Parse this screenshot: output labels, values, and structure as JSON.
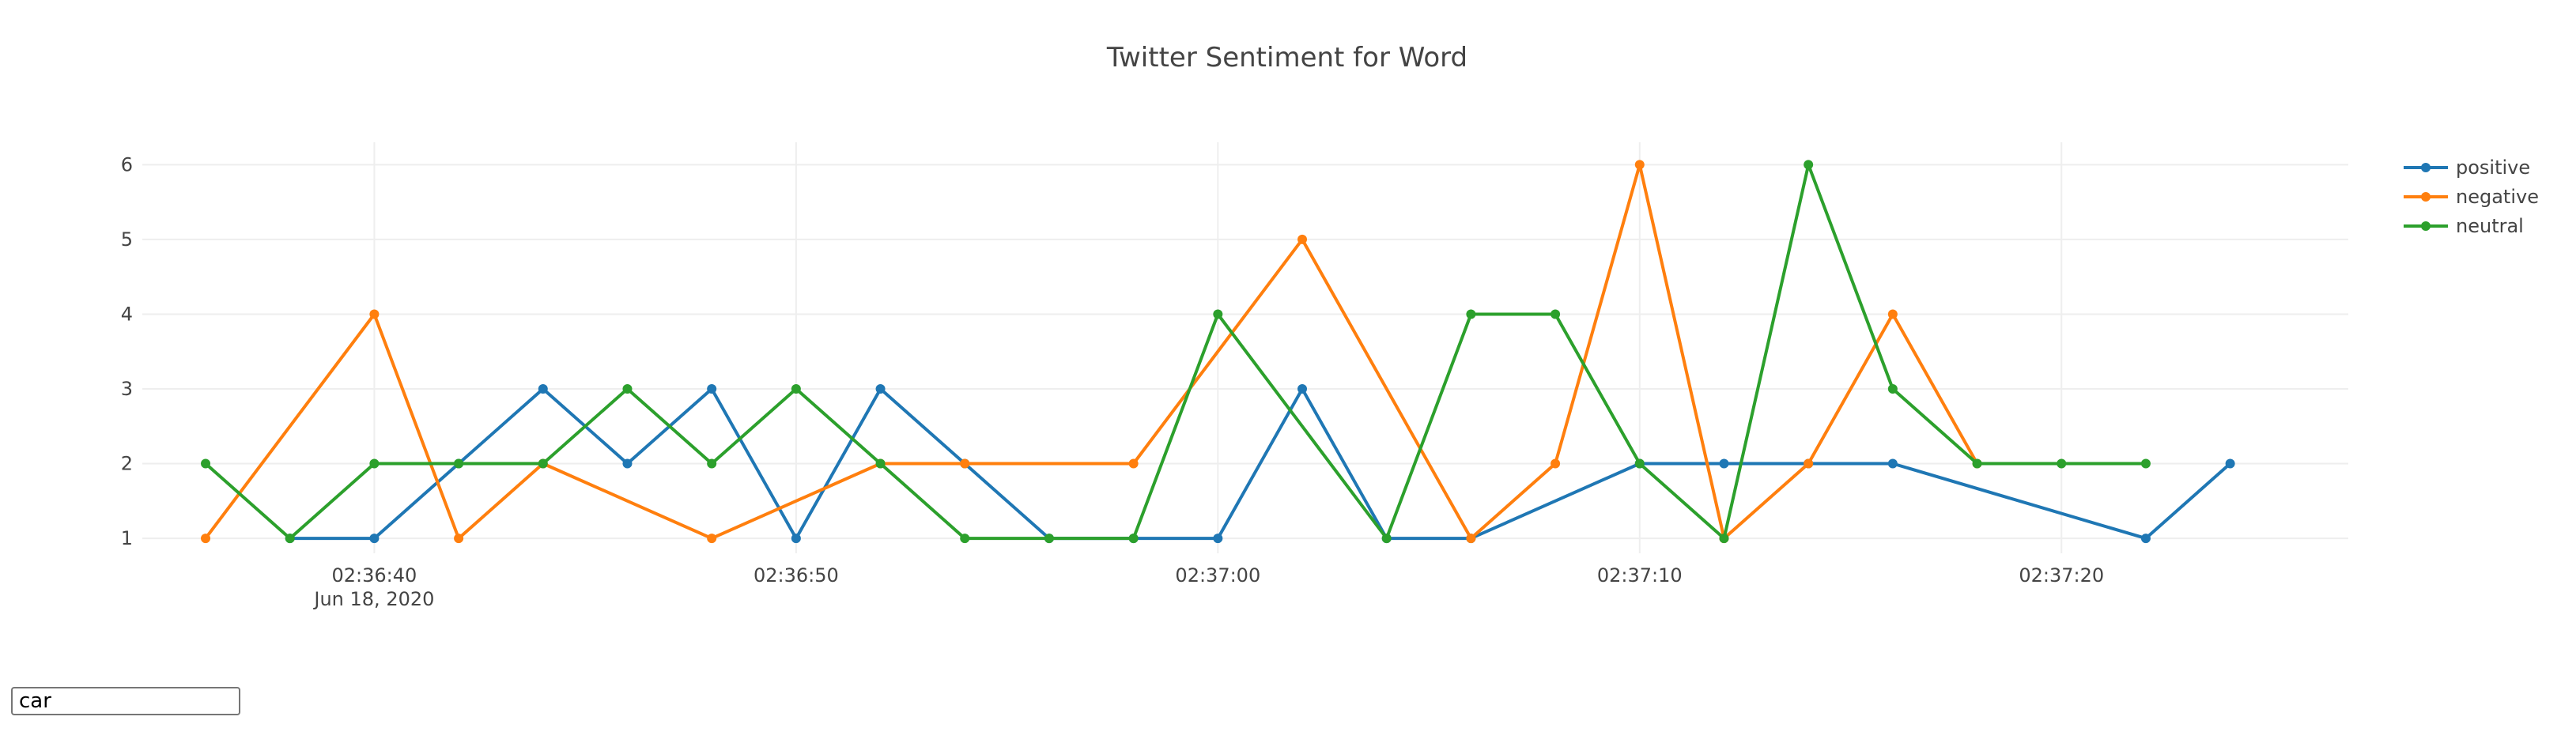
{
  "search": {
    "value": "car",
    "placeholder": ""
  },
  "chart_data": {
    "type": "line",
    "title": "Twitter Sentiment for Word",
    "xlabel": "",
    "ylabel": "",
    "x_axis_type": "time",
    "x_date_label": "Jun 18, 2020",
    "x_ticks": [
      "02:36:40",
      "02:36:50",
      "02:37:00",
      "02:37:10",
      "02:37:20"
    ],
    "ylim": [
      0.8,
      6.3
    ],
    "y_ticks": [
      1,
      2,
      3,
      4,
      5,
      6
    ],
    "grid": true,
    "legend_position": "top-right",
    "colors": {
      "positive": "#1f77b4",
      "negative": "#ff7f0e",
      "neutral": "#2ca02c"
    },
    "series": [
      {
        "name": "positive",
        "x": [
          "02:36:38",
          "02:36:40",
          "02:36:42",
          "02:36:44",
          "02:36:46",
          "02:36:48",
          "02:36:50",
          "02:36:52",
          "02:36:54",
          "02:36:56",
          "02:36:58",
          "02:37:00",
          "02:37:02",
          "02:37:04",
          "02:37:06",
          "02:37:10",
          "02:37:12",
          "02:37:14",
          "02:37:16",
          "02:37:22",
          "02:37:24"
        ],
        "values": [
          1,
          1,
          2,
          3,
          2,
          3,
          1,
          3,
          2,
          1,
          1,
          1,
          3,
          1,
          1,
          2,
          2,
          2,
          2,
          1,
          2
        ]
      },
      {
        "name": "negative",
        "x": [
          "02:36:36",
          "02:36:40",
          "02:36:42",
          "02:36:44",
          "02:36:48",
          "02:36:52",
          "02:36:54",
          "02:36:58",
          "02:37:02",
          "02:37:06",
          "02:37:08",
          "02:37:10",
          "02:37:12",
          "02:37:14",
          "02:37:16",
          "02:37:18"
        ],
        "values": [
          1,
          4,
          1,
          2,
          1,
          2,
          2,
          2,
          5,
          1,
          2,
          6,
          1,
          2,
          4,
          2
        ]
      },
      {
        "name": "neutral",
        "x": [
          "02:36:36",
          "02:36:38",
          "02:36:40",
          "02:36:42",
          "02:36:44",
          "02:36:46",
          "02:36:48",
          "02:36:50",
          "02:36:52",
          "02:36:54",
          "02:36:56",
          "02:36:58",
          "02:37:00",
          "02:37:04",
          "02:37:06",
          "02:37:08",
          "02:37:10",
          "02:37:12",
          "02:37:14",
          "02:37:16",
          "02:37:18",
          "02:37:20",
          "02:37:22"
        ],
        "values": [
          2,
          1,
          2,
          2,
          2,
          3,
          2,
          3,
          2,
          1,
          1,
          1,
          4,
          1,
          4,
          4,
          2,
          1,
          6,
          3,
          2,
          2,
          2
        ]
      }
    ]
  }
}
